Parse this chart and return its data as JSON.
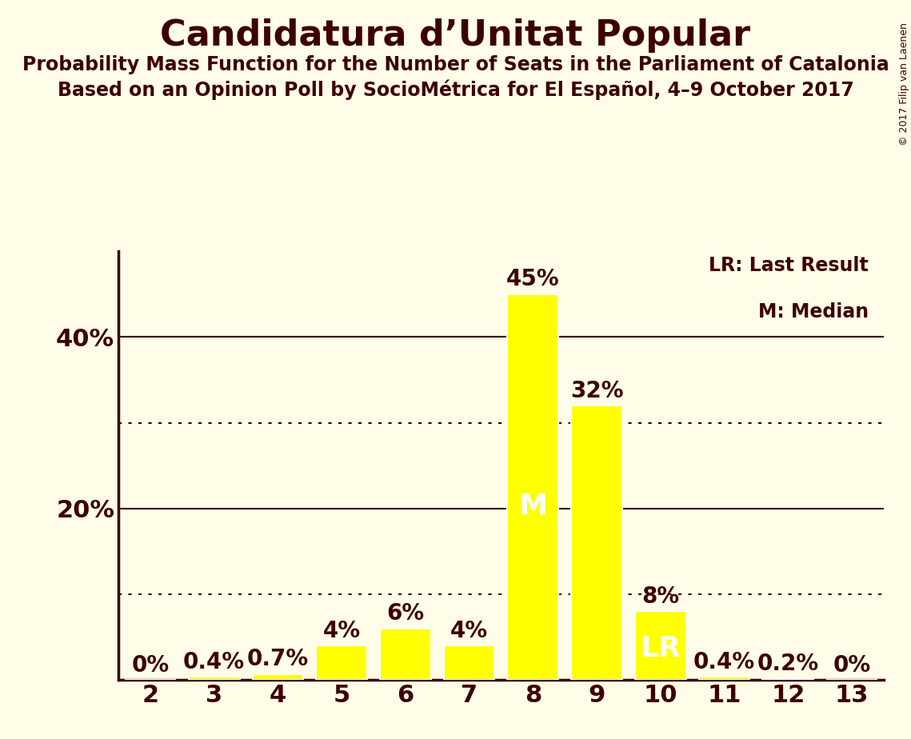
{
  "title": "Candidatura d’Unitat Popular",
  "subtitle1": "Probability Mass Function for the Number of Seats in the Parliament of Catalonia",
  "subtitle2": "Based on an Opinion Poll by SocioMétrica for El Español, 4–9 October 2017",
  "copyright": "© 2017 Filip van Laenen",
  "seats": [
    2,
    3,
    4,
    5,
    6,
    7,
    8,
    9,
    10,
    11,
    12,
    13
  ],
  "probabilities": [
    0.0,
    0.4,
    0.7,
    4.0,
    6.0,
    4.0,
    45.0,
    32.0,
    8.0,
    0.4,
    0.2,
    0.0
  ],
  "bar_color": "#FFFF00",
  "bar_edge_color": "#FFFFFF",
  "background_color": "#FFFDE8",
  "text_color": "#3D0000",
  "median_seat": 8,
  "last_result_seat": 10,
  "ylim": [
    0,
    50
  ],
  "yticks": [
    20,
    40
  ],
  "dotted_lines": [
    10,
    30
  ],
  "legend_lr": "LR: Last Result",
  "legend_m": "M: Median",
  "title_fontsize": 32,
  "subtitle_fontsize": 17,
  "axis_fontsize": 22,
  "bar_label_fontsize": 20,
  "inside_label_fontsize": 26,
  "copyright_fontsize": 9
}
